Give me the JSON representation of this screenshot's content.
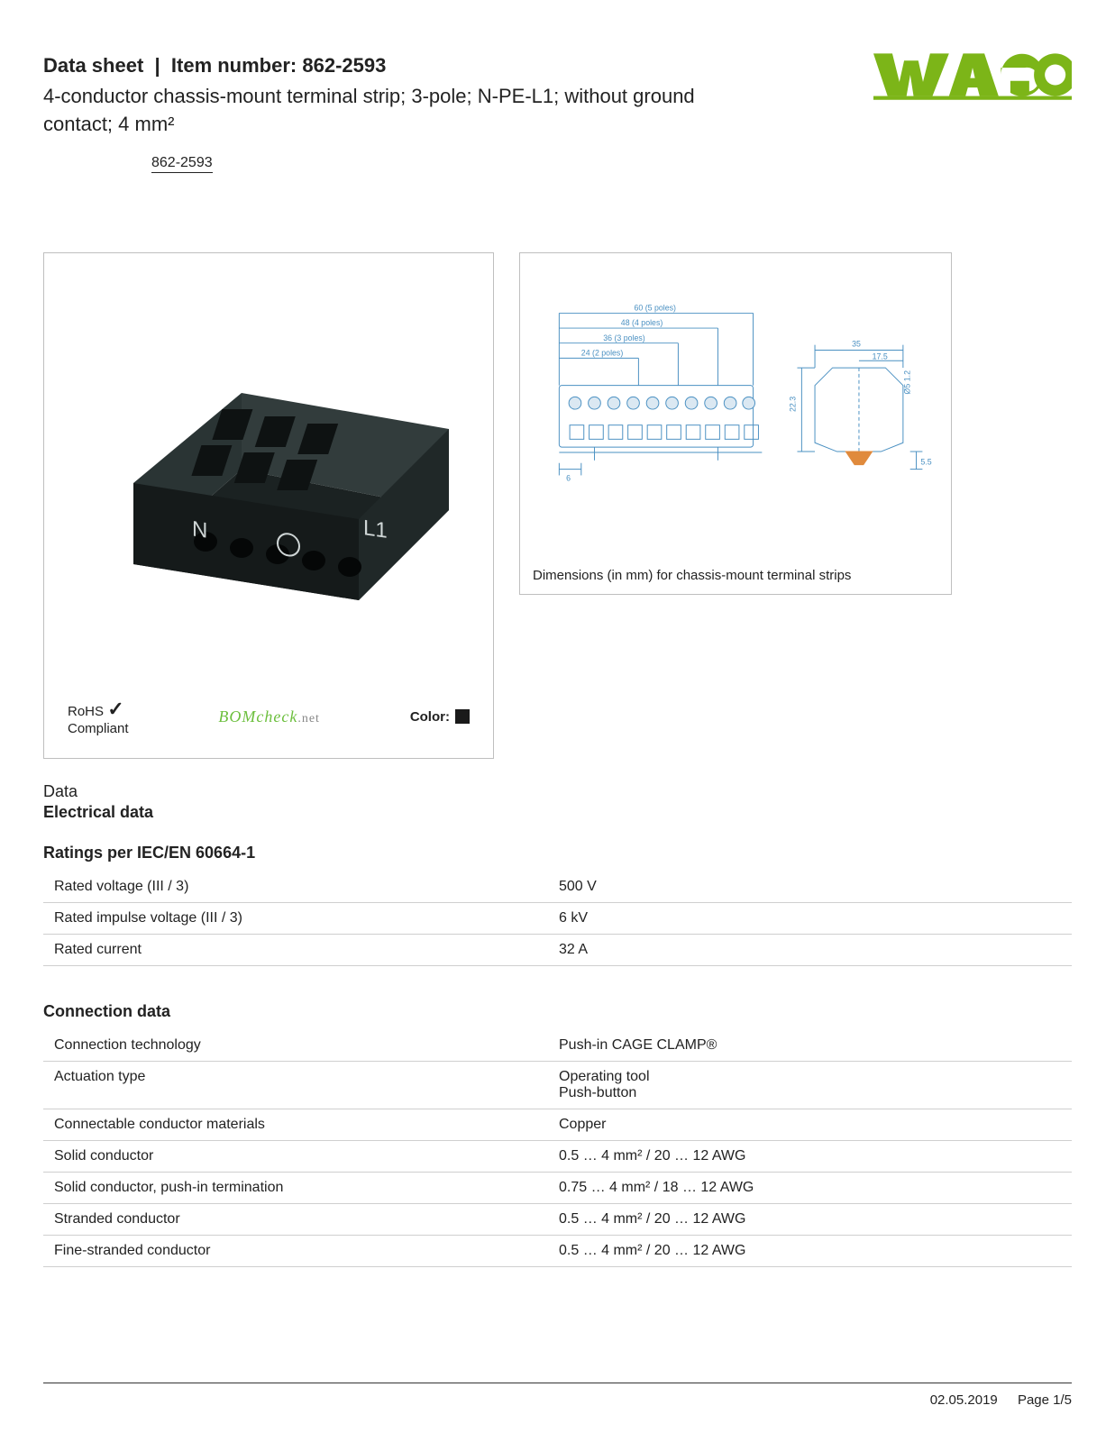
{
  "header": {
    "datasheet_prefix": "Data sheet",
    "item_number_label": "Item number:",
    "item_number": "862-2593",
    "subtitle": "4-conductor chassis-mount terminal strip; 3-pole; N-PE-L1; without ground contact; 4 mm²",
    "logo_text": "WAGO",
    "logo_color": "#7cb518"
  },
  "part_link": "862-2593",
  "product_box": {
    "rohs_line1": "RoHS",
    "rohs_line2": "Compliant",
    "check_glyph": "✓",
    "bomcheck_main": "BOMcheck",
    "bomcheck_suffix": ".net",
    "color_label": "Color:",
    "color_swatch": "#1a1a1a",
    "render_body_color": "#272d2d",
    "render_highlight": "#3b4444"
  },
  "diagram_box": {
    "caption": "Dimensions (in mm) for chassis-mount terminal strips",
    "line_color": "#4a90c2",
    "accent_color": "#e08a3c",
    "top_labels": [
      "60 (5 poles)",
      "48 (4 poles)",
      "36 (3 poles)",
      "24 (2 poles)"
    ],
    "bottom_dim": "6",
    "side_height": "22.3",
    "side_width": "35",
    "side_foot": "5.5",
    "side_half": "17.5",
    "hole_dia": "Ø5",
    "hole_h": "1.2"
  },
  "sections": {
    "data_label": "Data",
    "electrical_title": "Electrical data",
    "ratings_title": "Ratings per IEC/EN 60664-1",
    "ratings_rows": [
      {
        "k": "Rated voltage (III / 3)",
        "v": "500 V"
      },
      {
        "k": "Rated impulse voltage (III / 3)",
        "v": "6 kV"
      },
      {
        "k": "Rated current",
        "v": "32 A"
      }
    ],
    "connection_title": "Connection data",
    "connection_rows": [
      {
        "k": "Connection technology",
        "v": "Push-in CAGE CLAMP®"
      },
      {
        "k": "Actuation type",
        "v": "Operating tool\nPush-button"
      },
      {
        "k": "Connectable conductor materials",
        "v": "Copper"
      },
      {
        "k": "Solid conductor",
        "v": "0.5 … 4 mm² / 20 … 12 AWG"
      },
      {
        "k": "Solid conductor, push-in termination",
        "v": "0.75 … 4 mm² / 18 … 12 AWG"
      },
      {
        "k": "Stranded conductor",
        "v": "0.5 … 4 mm² / 20 … 12 AWG"
      },
      {
        "k": "Fine-stranded conductor",
        "v": "0.5 … 4 mm² / 20 … 12 AWG"
      }
    ]
  },
  "footer": {
    "date": "02.05.2019",
    "page": "Page 1/5"
  }
}
